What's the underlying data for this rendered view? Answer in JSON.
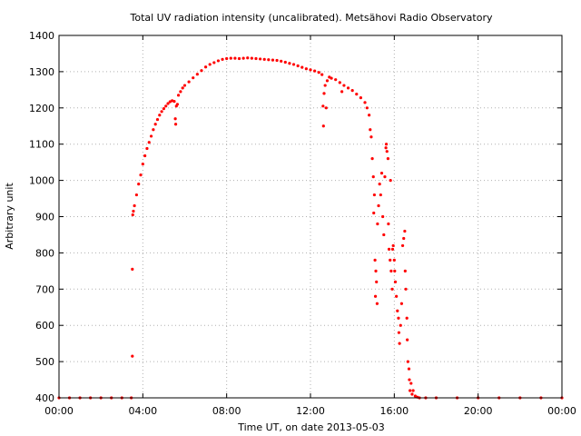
{
  "chart_data": {
    "type": "scatter",
    "title": "Total UV radiation intensity (uncalibrated). Metsähovi Radio Observatory",
    "xlabel": "Time UT, on date 2013-05-03",
    "ylabel": "Arbitrary unit",
    "xlim": [
      0,
      24
    ],
    "ylim": [
      400,
      1400
    ],
    "x_ticks": [
      0,
      4,
      8,
      12,
      16,
      20,
      24
    ],
    "x_tick_labels": [
      "00:00",
      "04:00",
      "08:00",
      "12:00",
      "16:00",
      "20:00",
      "00:00"
    ],
    "y_ticks": [
      400,
      500,
      600,
      700,
      800,
      900,
      1000,
      1100,
      1200,
      1300,
      1400
    ],
    "y_tick_labels": [
      "400",
      "500",
      "600",
      "700",
      "800",
      "900",
      "1000",
      "1100",
      "1200",
      "1300",
      "1400"
    ],
    "grid": true,
    "series_color": "#ff0000",
    "points": [
      [
        0.0,
        400
      ],
      [
        0.5,
        400
      ],
      [
        1.0,
        400
      ],
      [
        1.5,
        400
      ],
      [
        2.0,
        400
      ],
      [
        2.5,
        400
      ],
      [
        3.0,
        400
      ],
      [
        3.45,
        400
      ],
      [
        3.5,
        515
      ],
      [
        3.5,
        755
      ],
      [
        3.52,
        905
      ],
      [
        3.55,
        915
      ],
      [
        3.6,
        930
      ],
      [
        3.7,
        960
      ],
      [
        3.8,
        990
      ],
      [
        3.9,
        1015
      ],
      [
        4.0,
        1045
      ],
      [
        4.1,
        1068
      ],
      [
        4.2,
        1088
      ],
      [
        4.3,
        1105
      ],
      [
        4.4,
        1122
      ],
      [
        4.5,
        1140
      ],
      [
        4.6,
        1155
      ],
      [
        4.7,
        1168
      ],
      [
        4.8,
        1180
      ],
      [
        4.9,
        1190
      ],
      [
        5.0,
        1198
      ],
      [
        5.1,
        1205
      ],
      [
        5.2,
        1212
      ],
      [
        5.3,
        1217
      ],
      [
        5.4,
        1220
      ],
      [
        5.5,
        1218
      ],
      [
        5.55,
        1170
      ],
      [
        5.57,
        1155
      ],
      [
        5.6,
        1205
      ],
      [
        5.65,
        1210
      ],
      [
        5.7,
        1235
      ],
      [
        5.8,
        1245
      ],
      [
        5.9,
        1255
      ],
      [
        6.0,
        1262
      ],
      [
        6.2,
        1272
      ],
      [
        6.4,
        1283
      ],
      [
        6.6,
        1293
      ],
      [
        6.8,
        1303
      ],
      [
        7.0,
        1313
      ],
      [
        7.2,
        1320
      ],
      [
        7.4,
        1325
      ],
      [
        7.6,
        1330
      ],
      [
        7.8,
        1334
      ],
      [
        8.0,
        1336
      ],
      [
        8.2,
        1337
      ],
      [
        8.4,
        1337
      ],
      [
        8.6,
        1336
      ],
      [
        8.8,
        1337
      ],
      [
        9.0,
        1338
      ],
      [
        9.2,
        1337
      ],
      [
        9.4,
        1336
      ],
      [
        9.6,
        1335
      ],
      [
        9.8,
        1334
      ],
      [
        10.0,
        1333
      ],
      [
        10.2,
        1332
      ],
      [
        10.4,
        1331
      ],
      [
        10.6,
        1329
      ],
      [
        10.8,
        1326
      ],
      [
        11.0,
        1323
      ],
      [
        11.2,
        1320
      ],
      [
        11.4,
        1316
      ],
      [
        11.6,
        1312
      ],
      [
        11.8,
        1308
      ],
      [
        12.0,
        1305
      ],
      [
        12.2,
        1302
      ],
      [
        12.4,
        1298
      ],
      [
        12.55,
        1292
      ],
      [
        12.6,
        1205
      ],
      [
        12.62,
        1150
      ],
      [
        12.65,
        1240
      ],
      [
        12.7,
        1262
      ],
      [
        12.75,
        1200
      ],
      [
        12.8,
        1275
      ],
      [
        12.9,
        1285
      ],
      [
        13.0,
        1282
      ],
      [
        13.2,
        1278
      ],
      [
        13.4,
        1270
      ],
      [
        13.5,
        1245
      ],
      [
        13.6,
        1262
      ],
      [
        13.8,
        1255
      ],
      [
        14.0,
        1248
      ],
      [
        14.2,
        1238
      ],
      [
        14.4,
        1228
      ],
      [
        14.6,
        1215
      ],
      [
        14.7,
        1200
      ],
      [
        14.8,
        1180
      ],
      [
        14.85,
        1140
      ],
      [
        14.9,
        1120
      ],
      [
        14.95,
        1060
      ],
      [
        15.0,
        1010
      ],
      [
        15.02,
        910
      ],
      [
        15.05,
        960
      ],
      [
        15.08,
        780
      ],
      [
        15.1,
        680
      ],
      [
        15.12,
        750
      ],
      [
        15.15,
        720
      ],
      [
        15.18,
        660
      ],
      [
        15.2,
        880
      ],
      [
        15.25,
        930
      ],
      [
        15.3,
        990
      ],
      [
        15.35,
        960
      ],
      [
        15.4,
        1020
      ],
      [
        15.45,
        900
      ],
      [
        15.5,
        850
      ],
      [
        15.55,
        1010
      ],
      [
        15.6,
        1090
      ],
      [
        15.62,
        1100
      ],
      [
        15.65,
        1080
      ],
      [
        15.7,
        1060
      ],
      [
        15.72,
        880
      ],
      [
        15.75,
        810
      ],
      [
        15.8,
        780
      ],
      [
        15.82,
        1000
      ],
      [
        15.85,
        750
      ],
      [
        15.9,
        700
      ],
      [
        15.92,
        810
      ],
      [
        15.95,
        820
      ],
      [
        16.0,
        780
      ],
      [
        16.02,
        750
      ],
      [
        16.05,
        720
      ],
      [
        16.1,
        680
      ],
      [
        16.15,
        640
      ],
      [
        16.2,
        620
      ],
      [
        16.22,
        580
      ],
      [
        16.25,
        550
      ],
      [
        16.3,
        600
      ],
      [
        16.35,
        660
      ],
      [
        16.4,
        820
      ],
      [
        16.45,
        840
      ],
      [
        16.5,
        860
      ],
      [
        16.52,
        750
      ],
      [
        16.55,
        700
      ],
      [
        16.6,
        620
      ],
      [
        16.62,
        560
      ],
      [
        16.65,
        500
      ],
      [
        16.7,
        480
      ],
      [
        16.72,
        450
      ],
      [
        16.75,
        420
      ],
      [
        16.8,
        440
      ],
      [
        16.85,
        410
      ],
      [
        16.9,
        420
      ],
      [
        17.0,
        405
      ],
      [
        17.1,
        402
      ],
      [
        17.2,
        400
      ],
      [
        17.5,
        400
      ],
      [
        18.0,
        400
      ],
      [
        19.0,
        400
      ],
      [
        20.0,
        400
      ],
      [
        21.0,
        400
      ],
      [
        22.0,
        400
      ],
      [
        23.0,
        400
      ],
      [
        24.0,
        400
      ]
    ]
  }
}
